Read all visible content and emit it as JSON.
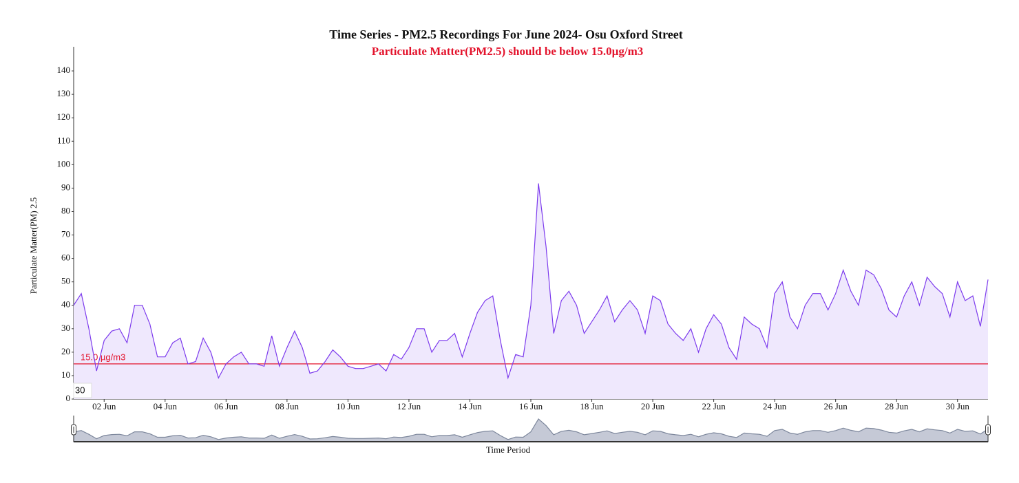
{
  "chart_data": {
    "type": "area",
    "title": "Time Series - PM2.5 Recordings For June 2024- Osu Oxford Street",
    "subtitle": "Particulate Matter(PM2.5) should be below 15.0µg/m3",
    "y_label": "Particulate Matter(PM) 2.5",
    "x_label": "Time Period",
    "corner_label": "30",
    "color": "#7c3aed",
    "fill": "#efe8fd",
    "threshold": {
      "value": 15,
      "label": "15.0 µg/m3",
      "color": "#e3132c"
    },
    "x": [
      1,
      1.25,
      1.5,
      1.75,
      2,
      2.25,
      2.5,
      2.75,
      3,
      3.25,
      3.5,
      3.75,
      4,
      4.25,
      4.5,
      4.75,
      5,
      5.25,
      5.5,
      5.75,
      6,
      6.25,
      6.5,
      6.75,
      7,
      7.25,
      7.5,
      7.75,
      8,
      8.25,
      8.5,
      8.75,
      9,
      9.25,
      9.5,
      9.75,
      10,
      10.25,
      10.5,
      10.75,
      11,
      11.25,
      11.5,
      11.75,
      12,
      12.25,
      12.5,
      12.75,
      13,
      13.25,
      13.5,
      13.75,
      14,
      14.25,
      14.5,
      14.75,
      15,
      15.25,
      15.5,
      15.75,
      16,
      16.25,
      16.5,
      16.75,
      17,
      17.25,
      17.5,
      17.75,
      18,
      18.25,
      18.5,
      18.75,
      19,
      19.25,
      19.5,
      19.75,
      20,
      20.25,
      20.5,
      20.75,
      21,
      21.25,
      21.5,
      21.75,
      22,
      22.25,
      22.5,
      22.75,
      23,
      23.25,
      23.5,
      23.75,
      24,
      24.25,
      24.5,
      24.75,
      25,
      25.25,
      25.5,
      25.75,
      26,
      26.25,
      26.5,
      26.75,
      27,
      27.25,
      27.5,
      27.75,
      28,
      28.25,
      28.5,
      28.75,
      29,
      29.25,
      29.5,
      29.75,
      30,
      30.25,
      30.5,
      30.75,
      31
    ],
    "values": [
      40,
      45,
      30,
      12,
      25,
      29,
      30,
      24,
      40,
      40,
      32,
      18,
      18,
      24,
      26,
      15,
      16,
      26,
      20,
      9,
      15,
      18,
      20,
      15,
      15,
      14,
      27,
      14,
      22,
      29,
      22,
      11,
      12,
      16,
      21,
      18,
      14,
      13,
      13,
      14,
      15,
      12,
      19,
      17,
      22,
      30,
      30,
      20,
      25,
      25,
      28,
      18,
      28,
      37,
      42,
      44,
      25,
      9,
      19,
      18,
      40,
      92,
      65,
      28,
      42,
      46,
      40,
      28,
      33,
      38,
      44,
      33,
      38,
      42,
      38,
      28,
      44,
      42,
      32,
      28,
      25,
      30,
      20,
      30,
      36,
      32,
      22,
      17,
      35,
      32,
      30,
      22,
      45,
      50,
      35,
      30,
      40,
      45,
      45,
      38,
      45,
      55,
      46,
      40,
      55,
      53,
      47,
      38,
      35,
      44,
      50,
      40,
      52,
      48,
      45,
      35,
      50,
      42,
      44,
      31,
      51
    ],
    "xlim": [
      1,
      31
    ],
    "ylim": [
      0,
      150
    ],
    "xticks": [
      {
        "value": 2,
        "label": "02 Jun"
      },
      {
        "value": 4,
        "label": "04 Jun"
      },
      {
        "value": 6,
        "label": "06 Jun"
      },
      {
        "value": 8,
        "label": "08 Jun"
      },
      {
        "value": 10,
        "label": "10 Jun"
      },
      {
        "value": 12,
        "label": "12 Jun"
      },
      {
        "value": 14,
        "label": "14 Jun"
      },
      {
        "value": 16,
        "label": "16 Jun"
      },
      {
        "value": 18,
        "label": "18 Jun"
      },
      {
        "value": 20,
        "label": "20 Jun"
      },
      {
        "value": 22,
        "label": "22 Jun"
      },
      {
        "value": 24,
        "label": "24 Jun"
      },
      {
        "value": 26,
        "label": "26 Jun"
      },
      {
        "value": 28,
        "label": "28 Jun"
      },
      {
        "value": 30,
        "label": "30 Jun"
      }
    ],
    "yticks": [
      0,
      10,
      20,
      30,
      40,
      50,
      60,
      70,
      80,
      90,
      100,
      110,
      120,
      130,
      140
    ],
    "grid": false
  }
}
